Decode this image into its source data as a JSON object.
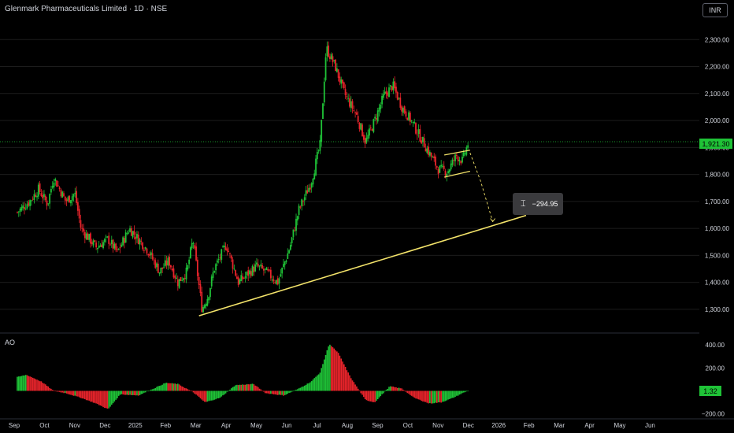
{
  "header": {
    "title": "Glenmark Pharmaceuticals Limited · 1D · NSE",
    "currency_button": "INR"
  },
  "price_tag": "1,921.30",
  "measure_label": "−294.95",
  "ao": {
    "label": "AO",
    "value_tag": "1.32"
  },
  "colors": {
    "up": "#1fc337",
    "down": "#e8242b",
    "trendline": "#f3e36a",
    "grid": "#1c1c1c",
    "text": "#d1d4dc"
  },
  "chart_data": [
    {
      "type": "candlestick",
      "title": "Glenmark Pharmaceuticals Limited · 1D · NSE",
      "ylim": [
        1250,
        2330
      ],
      "y_ticks": [
        1300,
        1400,
        1500,
        1600,
        1700,
        1800,
        1900,
        2000,
        2100,
        2200,
        2300
      ],
      "y_tick_labels": [
        "1,300.00",
        "1,400.00",
        "1,500.00",
        "1,600.00",
        "1,700.00",
        "1,800.00",
        "1,900.00",
        "2,000.00",
        "2,100.00",
        "2,200.00",
        "2,300.00"
      ],
      "x_tick_labels": [
        "Sep",
        "Oct",
        "Nov",
        "Dec",
        "2025",
        "Feb",
        "Mar",
        "Apr",
        "May",
        "Jun",
        "Jul",
        "Aug",
        "Sep",
        "Oct",
        "Nov",
        "Dec",
        "2026",
        "Feb",
        "Mar",
        "Apr",
        "May",
        "Jun"
      ],
      "x_tick_months": [
        0,
        1,
        2,
        3,
        4,
        5,
        6,
        7,
        8,
        9,
        10,
        11,
        12,
        13,
        14,
        15,
        16,
        17,
        18,
        19,
        20,
        21
      ],
      "close_path": [
        [
          0,
          1660
        ],
        [
          0.4,
          1700
        ],
        [
          0.7,
          1745
        ],
        [
          1.0,
          1690
        ],
        [
          1.2,
          1790
        ],
        [
          1.6,
          1700
        ],
        [
          1.9,
          1730
        ],
        [
          2.1,
          1600
        ],
        [
          2.6,
          1530
        ],
        [
          3.0,
          1560
        ],
        [
          3.3,
          1510
        ],
        [
          3.7,
          1600
        ],
        [
          4.0,
          1560
        ],
        [
          4.3,
          1520
        ],
        [
          4.7,
          1440
        ],
        [
          5.0,
          1480
        ],
        [
          5.3,
          1400
        ],
        [
          5.6,
          1440
        ],
        [
          5.8,
          1560
        ],
        [
          6.1,
          1300
        ],
        [
          6.3,
          1350
        ],
        [
          6.5,
          1450
        ],
        [
          6.9,
          1540
        ],
        [
          7.1,
          1470
        ],
        [
          7.3,
          1400
        ],
        [
          7.6,
          1430
        ],
        [
          7.9,
          1460
        ],
        [
          8.2,
          1440
        ],
        [
          8.6,
          1400
        ],
        [
          9.0,
          1530
        ],
        [
          9.3,
          1670
        ],
        [
          9.7,
          1770
        ],
        [
          10.0,
          1910
        ],
        [
          10.2,
          2270
        ],
        [
          10.5,
          2200
        ],
        [
          10.8,
          2100
        ],
        [
          11.2,
          2020
        ],
        [
          11.5,
          1920
        ],
        [
          11.8,
          2000
        ],
        [
          12.1,
          2090
        ],
        [
          12.4,
          2130
        ],
        [
          12.7,
          2050
        ],
        [
          13.0,
          2000
        ],
        [
          13.3,
          1940
        ],
        [
          13.6,
          1880
        ],
        [
          13.9,
          1820
        ],
        [
          14.2,
          1810
        ],
        [
          14.5,
          1870
        ],
        [
          14.7,
          1850
        ],
        [
          14.9,
          1921.3
        ]
      ],
      "channel": {
        "upper": [
          [
            14.1,
            1872
          ],
          [
            14.95,
            1890
          ]
        ],
        "lower": [
          [
            14.1,
            1790
          ],
          [
            14.95,
            1812
          ]
        ]
      },
      "projection": [
        [
          14.95,
          1880
        ],
        [
          15.3,
          1775
        ],
        [
          15.7,
          1625
        ]
      ],
      "trendline": {
        "start": [
          6.0,
          1276
        ],
        "end": [
          16.8,
          1648
        ]
      },
      "last_price": 1921.3,
      "measured_move": -294.95
    },
    {
      "type": "bar",
      "title": "AO",
      "ylim": [
        -230,
        470
      ],
      "y_ticks": [
        -200,
        0,
        200,
        400
      ],
      "y_tick_labels": [
        "−200.00",
        "",
        "200.00",
        "400.00"
      ],
      "shape_path": [
        [
          0,
          120
        ],
        [
          0.3,
          140
        ],
        [
          0.8,
          80
        ],
        [
          1.2,
          0
        ],
        [
          1.6,
          -20
        ],
        [
          2.1,
          -60
        ],
        [
          2.6,
          -110
        ],
        [
          3.0,
          -160
        ],
        [
          3.4,
          -30
        ],
        [
          4.0,
          -40
        ],
        [
          4.5,
          20
        ],
        [
          4.9,
          70
        ],
        [
          5.3,
          60
        ],
        [
          5.8,
          -10
        ],
        [
          6.2,
          -100
        ],
        [
          6.7,
          -60
        ],
        [
          7.2,
          50
        ],
        [
          7.8,
          60
        ],
        [
          8.2,
          -20
        ],
        [
          8.8,
          -40
        ],
        [
          9.3,
          20
        ],
        [
          9.7,
          80
        ],
        [
          10.0,
          160
        ],
        [
          10.3,
          410
        ],
        [
          10.6,
          330
        ],
        [
          11.0,
          120
        ],
        [
          11.5,
          -80
        ],
        [
          11.8,
          -100
        ],
        [
          12.3,
          40
        ],
        [
          12.7,
          20
        ],
        [
          13.1,
          -60
        ],
        [
          13.6,
          -110
        ],
        [
          14.0,
          -100
        ],
        [
          14.4,
          -60
        ],
        [
          14.7,
          -20
        ],
        [
          14.9,
          1.32
        ]
      ],
      "last_value": 1.32
    }
  ]
}
